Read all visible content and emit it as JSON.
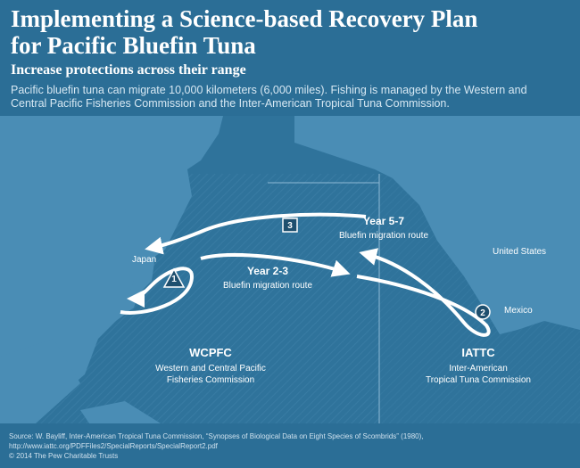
{
  "header": {
    "title": [
      "Implementing a Science-based Recovery Plan",
      "for Pacific Bluefin Tuna"
    ],
    "subtitle": "Increase protections across their range",
    "description": "Pacific bluefin tuna can migrate 10,000 kilometers (6,000 miles). Fishing is managed by the Western and Central Pacific Fisheries Commission and the Inter-American Tropical Tuna Commission."
  },
  "places": [
    "Japan",
    "United States",
    "Mexico"
  ],
  "routes": [
    {
      "marker": "1"
    },
    {
      "marker": "2",
      "title": "Year 2-3",
      "label": "Bluefin migration route"
    },
    {
      "marker": "3",
      "title": "Year 5-7",
      "label": "Bluefin migration route"
    }
  ],
  "regions": [
    {
      "name": "WCPFC",
      "full_name": [
        "Western and Central Pacific",
        "Fisheries Commission"
      ]
    },
    {
      "name": "IATTC",
      "full_name": [
        "Inter-American",
        "Tropical Tuna Commission"
      ]
    }
  ],
  "footer": {
    "source": "Source: W. Bayliff, Inter-American Tropical Tuna Commission, “Synopses of Biological Data on Eight Species of Scombrids” (1980), http://www.iattc.org/PDFFiles2/SpecialReports/SpecialReport2.pdf",
    "copyright": "© 2014 The Pew Charitable Trusts"
  }
}
